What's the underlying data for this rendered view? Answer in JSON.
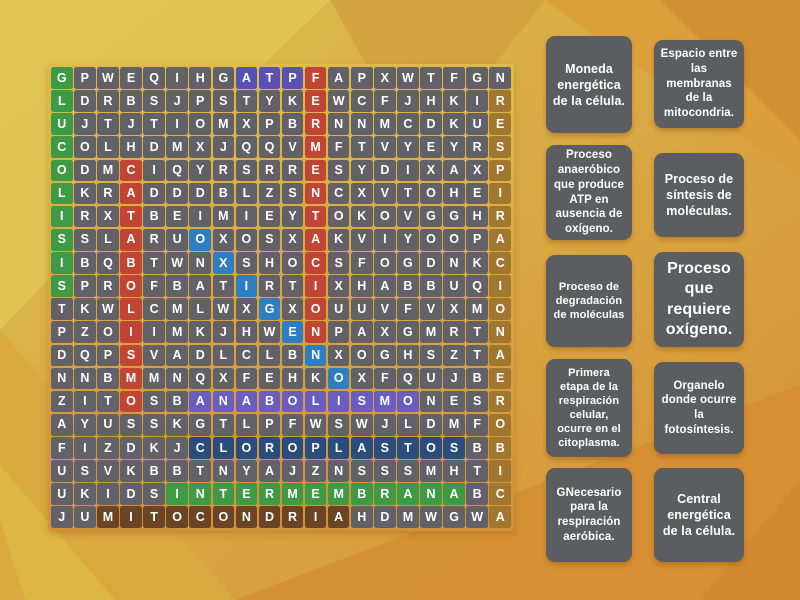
{
  "grid": {
    "rows": [
      "GPWEQIHGATPFAPXWTFGN",
      "LDRBSJPSTYKEWCFJHKIR",
      "UJTJTIOMXPBRNNMCDKUE",
      "COLHDMXJQQVMFTVYEYRS",
      "ODMCIQYRSRRESYDIXAXP",
      "LKRADDDBLZSNCXVTOHEI",
      "IRXTBEIMIEYTOKOVGGHR",
      "SSLARUOXOSXAKVIYOOPA",
      "IBQBTWNXSHOCSFOGDNKC",
      "SPROFBATIRTIXHABBUQI",
      "TKWLCMLWXGXOUUVFVXMO",
      "PZOIIMKJHWENPAXGMRTN",
      "DQPSVADLCLBNXOGHSZTA",
      "NNBMMNQXFEHKOXFQUJBE",
      "ZITOSBANABOLISMONESR",
      "AYUSSKGTLPFWSWJLDMFO",
      "FIZDKJCLOROPLASTOSBB",
      "USVKBBTNYAJZNSSSMHTI",
      "UKIDSINTERMEMBRANABC",
      "JUMITOCONDRIAHDMWGWA"
    ],
    "cell_color": "#616167",
    "letter_color": "#ffffff",
    "highlights": [
      {
        "word": "GLUCOLISIS",
        "row": 1,
        "col": 1,
        "dir": "down",
        "color": "#3f9a45"
      },
      {
        "word": "ATP",
        "row": 1,
        "col": 9,
        "dir": "right",
        "color": "#5952b5"
      },
      {
        "word": "FERMENTACION",
        "row": 1,
        "col": 12,
        "dir": "down",
        "color": "#c04534"
      },
      {
        "word": "CATABOLISMO",
        "row": 5,
        "col": 4,
        "dir": "down",
        "color": "#c04534"
      },
      {
        "word": "OXIGENO",
        "row": 8,
        "col": 7,
        "dir": "diag-down-right",
        "color": "#2d7fc1"
      },
      {
        "word": "RESPIRACIONAEROBICA",
        "row": 2,
        "col": 20,
        "dir": "down",
        "color": "#a1762e"
      },
      {
        "word": "ANABOLISMO",
        "row": 15,
        "col": 7,
        "dir": "right",
        "color": "#6a5dc0"
      },
      {
        "word": "CLOROPLASTOS",
        "row": 17,
        "col": 7,
        "dir": "right",
        "color": "#2a4d7e"
      },
      {
        "word": "INTERMEMBRANA",
        "row": 19,
        "col": 6,
        "dir": "right",
        "color": "#3f9a45"
      },
      {
        "word": "MITOCONDRIA",
        "row": 20,
        "col": 3,
        "dir": "right",
        "color": "#6b4425"
      }
    ]
  },
  "clues": {
    "card_color": "#5c5d61",
    "text_color": "#ffffff",
    "left_column": [
      "Moneda energética de la célula.",
      "Proceso anaeróbico que produce ATP en ausencia de oxígeno.",
      "Proceso de degradación de moléculas",
      "Primera etapa de la respiración celular, ocurre en el citoplasma.",
      "GNecesario para la respiración aeróbica."
    ],
    "right_column": [
      "Espacio entre las membranas de la mitocondria.",
      "Proceso de síntesis de moléculas.",
      "Proceso que requiere oxígeno.",
      "Organelo donde ocurre la fotosíntesis.",
      "Central energética de la célula."
    ]
  },
  "background": {
    "base_yellow": "#dcc14f",
    "base_orange": "#d68f35"
  }
}
